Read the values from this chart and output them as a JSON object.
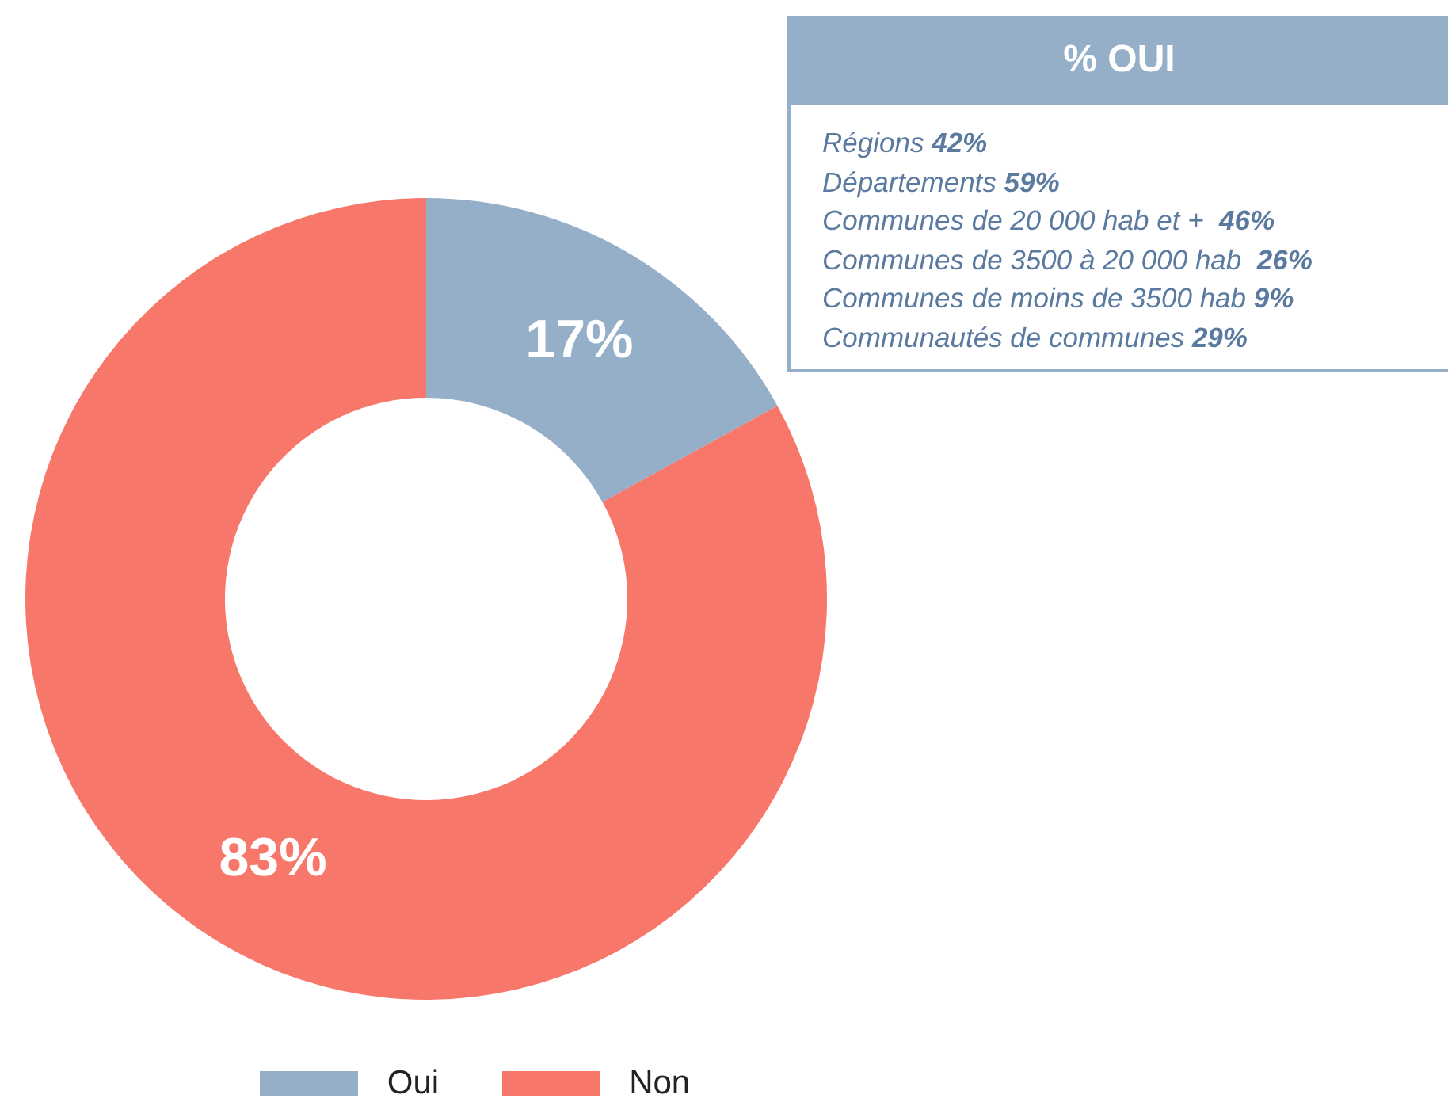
{
  "chart_data": [
    {
      "type": "donut",
      "categories": [
        "Oui",
        "Non"
      ],
      "values": [
        17,
        83
      ],
      "colors": [
        "#95afc9",
        "#f8776b"
      ],
      "value_labels": [
        "17%",
        "83%"
      ],
      "legend": "bottom"
    },
    {
      "type": "other",
      "title": "% OUI",
      "annotations": [
        "Régions 42%",
        "Départements 59%",
        "Communes de 20 000 hab et +  46%",
        "Communes de 3500 à 20 000 hab  26%",
        "Communes de moins de 3500 hab 9%",
        "Communautés de communes 29%"
      ]
    }
  ]
}
